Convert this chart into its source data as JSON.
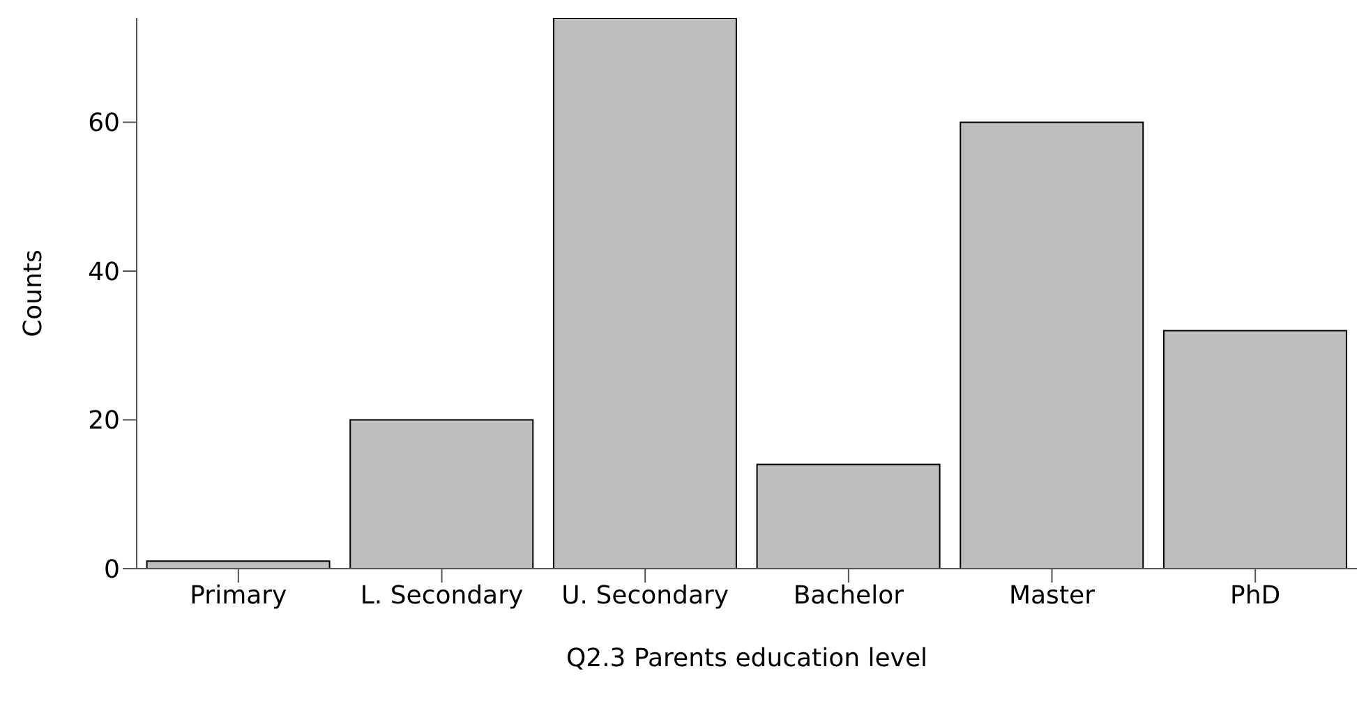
{
  "chart_data": {
    "type": "bar",
    "xlabel": "Q2.3 Parents education level",
    "ylabel": "Counts",
    "categories": [
      "Primary",
      "L. Secondary",
      "U. Secondary",
      "Bachelor",
      "Master",
      "PhD"
    ],
    "values": [
      1,
      20,
      74,
      14,
      60,
      32
    ],
    "color": "#bebebe",
    "ylim": [
      0,
      74
    ],
    "yticks": [
      0,
      20,
      40,
      60
    ],
    "grid": false,
    "legend": false
  }
}
